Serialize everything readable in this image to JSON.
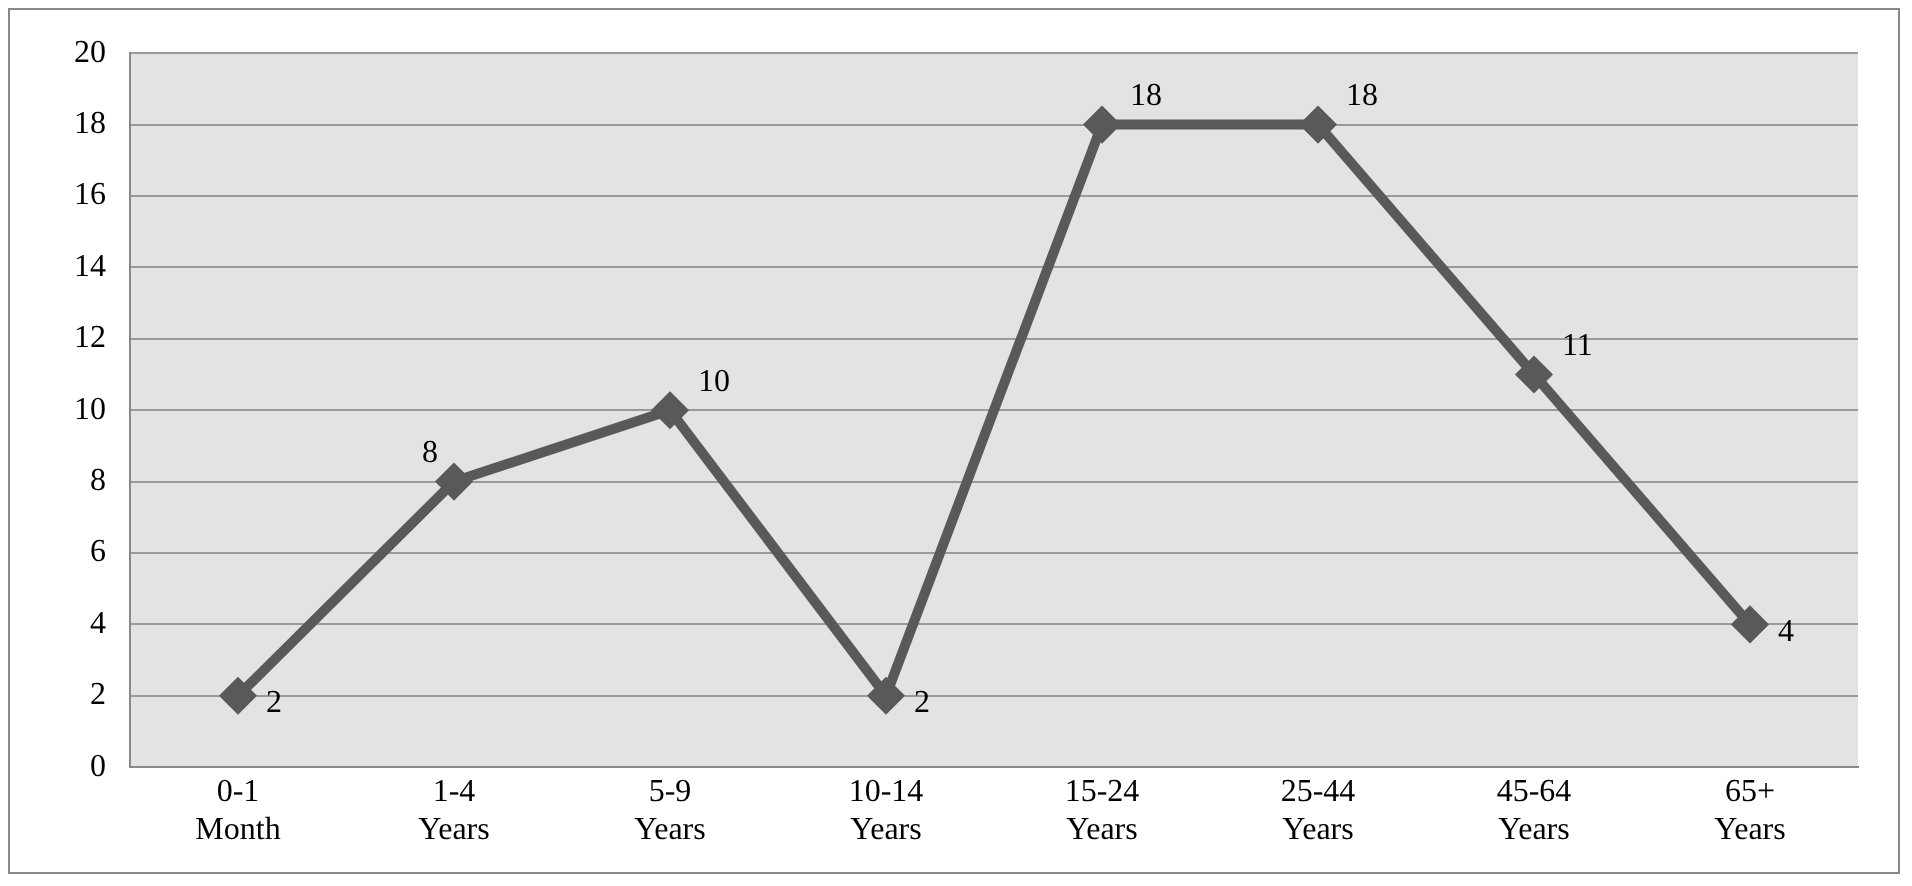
{
  "chart_data": {
    "type": "line",
    "categories": [
      "0-1 Month",
      "1-4 Years",
      "5-9 Years",
      "10-14 Years",
      "15-24 Years",
      "25-44 Years",
      "45-64 Years",
      "65+ Years"
    ],
    "series": [
      {
        "color": "#595959",
        "values": [
          2,
          8,
          10,
          2,
          18,
          18,
          11,
          4
        ]
      }
    ],
    "ylim": [
      0,
      20
    ],
    "yticks": [
      0,
      2,
      4,
      6,
      8,
      10,
      12,
      14,
      16,
      18,
      20
    ],
    "grid": "y",
    "marker": "diamond",
    "line_style": "solid",
    "data_labels": true,
    "legend": false
  }
}
